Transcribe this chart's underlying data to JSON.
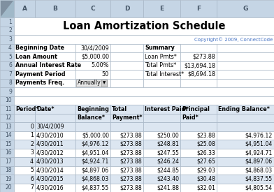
{
  "title": "Loan Amortization Schedule",
  "copyright": "Copyright© 2009, ConnectCode",
  "col_headers": [
    "A",
    "B",
    "C",
    "D",
    "E",
    "F",
    "G"
  ],
  "input_rows": [
    [
      "Beginning Date",
      "30/4/2009",
      "Summary",
      ""
    ],
    [
      "Loan Amount",
      "$5,000.00",
      "Loan Pmts*",
      "$273.88"
    ],
    [
      "Annual Interest Rate",
      "5.00%",
      "Total Pmts*",
      "$13,694.18"
    ],
    [
      "Payment Period",
      "50",
      "Total Interest*",
      "$8,694.18"
    ],
    [
      "Payments Freq.",
      "Annually",
      "",
      ""
    ]
  ],
  "table_headers_row1": [
    "Period*",
    "Date*",
    "Beginning",
    "Total",
    "Interest Paid*",
    "Principal",
    "Ending Balance*"
  ],
  "table_headers_row2": [
    "",
    "",
    "Balance*",
    "Payment*",
    "",
    "Paid*",
    ""
  ],
  "table_data": [
    [
      "0",
      "30/4/2009",
      "",
      "",
      "",
      "",
      ""
    ],
    [
      "1",
      "4/30/2010",
      "$5,000.00",
      "$273.88",
      "$250.00",
      "$23.88",
      "$4,976.12"
    ],
    [
      "2",
      "4/30/2011",
      "$4,976.12",
      "$273.88",
      "$248.81",
      "$25.08",
      "$4,951.04"
    ],
    [
      "3",
      "4/30/2012",
      "$4,951.04",
      "$273.88",
      "$247.55",
      "$26.33",
      "$4,924.71"
    ],
    [
      "4",
      "4/30/2013",
      "$4,924.71",
      "$273.88",
      "$246.24",
      "$27.65",
      "$4,897.06"
    ],
    [
      "5",
      "4/30/2014",
      "$4,897.06",
      "$273.88",
      "$244.85",
      "$29.03",
      "$4,868.03"
    ],
    [
      "6",
      "4/30/2015",
      "$4,868.03",
      "$273.88",
      "$243.40",
      "$30.48",
      "$4,837.55"
    ],
    [
      "7",
      "4/30/2016",
      "$4,837.55",
      "$273.88",
      "$241.88",
      "$32.01",
      "$4,805.54"
    ]
  ],
  "cell_bg_white": "#ffffff",
  "cell_bg_blue": "#dce6f1",
  "header_col_bg": "#c5d5e5",
  "header_row_bg": "#c5d5e5",
  "corner_bg": "#a0b8c8",
  "grid_color": "#a0b0c0",
  "copyright_color": "#4472c4",
  "title_fontsize": 10.5,
  "label_fontsize": 5.8,
  "data_fontsize": 5.6,
  "header_fontsize": 5.8
}
